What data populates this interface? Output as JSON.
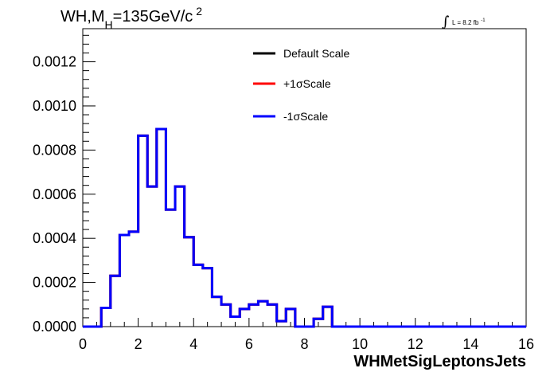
{
  "title": {
    "main": "WH,M",
    "sub": "H",
    "rest": "=135GeV/c",
    "sup": "2"
  },
  "lumi": {
    "text": "L = 8.2 fb",
    "sup": "-1"
  },
  "colors": {
    "default": "#000000",
    "plus": "#ff0000",
    "minus": "#0000ff"
  },
  "chart_data": {
    "type": "line",
    "drawstyle": "steps",
    "xlabel": "WHMetSigLeptonsJets",
    "ylabel": "",
    "xlim": [
      0,
      16
    ],
    "ylim": [
      0,
      0.00135
    ],
    "xticks": [
      0,
      2,
      4,
      6,
      8,
      10,
      12,
      14,
      16
    ],
    "xtick_labels": [
      "0",
      "2",
      "4",
      "6",
      "8",
      "10",
      "12",
      "14",
      "16"
    ],
    "yticks": [
      0,
      0.0002,
      0.0004,
      0.0006,
      0.0008,
      0.001,
      0.0012
    ],
    "ytick_labels": [
      "0.0000",
      "0.0002",
      "0.0004",
      "0.0006",
      "0.0008",
      "0.0010",
      "0.0012"
    ],
    "bin_width": 0.3333,
    "bin_edges_start": 0,
    "legend_position": "top-right",
    "series": [
      {
        "name": "Default Scale",
        "color": "#000000",
        "values": [
          0,
          0,
          8.5e-05,
          0.00023,
          0.000415,
          0.00043,
          0.000865,
          0.000635,
          0.000895,
          0.00053,
          0.000635,
          0.000405,
          0.00028,
          0.000265,
          0.000135,
          0.0001,
          4.5e-05,
          8e-05,
          0.0001,
          0.000115,
          0.0001,
          2.5e-05,
          8e-05,
          0,
          0,
          3.5e-05,
          9e-05,
          0,
          0,
          0,
          0,
          0,
          0,
          0,
          0,
          0,
          0,
          0,
          0,
          0,
          0,
          0,
          0,
          0,
          0,
          0,
          0,
          0
        ]
      },
      {
        "name": "+1σScale",
        "color": "#ff0000",
        "values": [
          0,
          0,
          8.5e-05,
          0.00023,
          0.000415,
          0.00043,
          0.000865,
          0.000635,
          0.000895,
          0.00053,
          0.000635,
          0.000405,
          0.00028,
          0.000265,
          0.000135,
          0.0001,
          4.5e-05,
          8e-05,
          0.0001,
          0.000115,
          0.0001,
          2.5e-05,
          8e-05,
          0,
          0,
          3.5e-05,
          9e-05,
          0,
          0,
          0,
          0,
          0,
          0,
          0,
          0,
          0,
          0,
          0,
          0,
          0,
          0,
          0,
          0,
          0,
          0,
          0,
          0,
          0
        ]
      },
      {
        "name": "-1σScale",
        "color": "#0000ff",
        "values": [
          0,
          0,
          8.5e-05,
          0.00023,
          0.000415,
          0.00043,
          0.000865,
          0.000635,
          0.000895,
          0.00053,
          0.000635,
          0.000405,
          0.00028,
          0.000265,
          0.000135,
          0.0001,
          4.5e-05,
          8e-05,
          0.0001,
          0.000115,
          0.0001,
          2.5e-05,
          8e-05,
          0,
          0,
          3.5e-05,
          9e-05,
          0,
          0,
          0,
          0,
          0,
          0,
          0,
          0,
          0,
          0,
          0,
          0,
          0,
          0,
          0,
          0,
          0,
          0,
          0,
          0,
          0
        ]
      }
    ]
  }
}
